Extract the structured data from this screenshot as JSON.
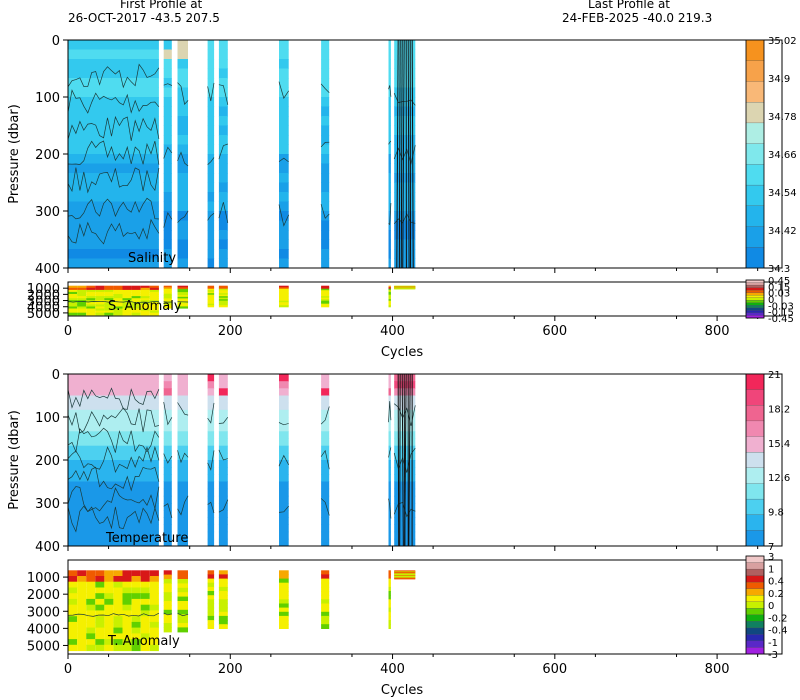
{
  "header": {
    "first_label": "First Profile at",
    "first_value": "26-OCT-2017   -43.5  207.5",
    "last_label": "Last Profile at",
    "last_value": "24-FEB-2025   -40.0  219.3"
  },
  "chart_data": [
    {
      "type": "heatmap",
      "title": "Salinity",
      "xlabel": "",
      "ylabel": "Pressure (dbar)",
      "xlim": [
        0,
        880
      ],
      "ylim": [
        400,
        0
      ],
      "x_ticks": [
        "0",
        "200",
        "400",
        "600",
        "800"
      ],
      "y_ticks": [
        "0",
        "100",
        "200",
        "300",
        "400"
      ],
      "colorbar_ticks": [
        "35.02",
        "34.9",
        "34.78",
        "34.66",
        "34.54",
        "34.42",
        "34.3"
      ],
      "colorbar_colors": [
        "#f6921e",
        "#f7a24a",
        "#f9b877",
        "#dcd5b1",
        "#aeeee4",
        "#7fe8ec",
        "#4fdcf0",
        "#33c9ee",
        "#23b4ec",
        "#1aa0e8",
        "#108ae4"
      ],
      "profile_cycle_ranges": [
        [
          0,
          112
        ],
        [
          118,
          128
        ],
        [
          135,
          148
        ],
        [
          172,
          180
        ],
        [
          186,
          197
        ],
        [
          260,
          272
        ],
        [
          312,
          322
        ],
        [
          395,
          398
        ],
        [
          402,
          428
        ]
      ],
      "gaps": "data only in profile cycle ranges"
    },
    {
      "type": "heatmap",
      "title": "S. Anomaly",
      "xlabel": "Cycles",
      "ylabel": "",
      "xlim": [
        0,
        880
      ],
      "ylim": [
        5500,
        0
      ],
      "x_ticks": [
        "0",
        "200",
        "400",
        "600",
        "800"
      ],
      "y_ticks": [
        "1000",
        "2000",
        "3000",
        "4000",
        "5000"
      ],
      "colorbar_ticks": [
        "0.45",
        "0.15",
        "0.03",
        "0",
        "-0.03",
        "-0.15",
        "-0.45"
      ],
      "colorbar_colors": [
        "#f0c8c8",
        "#d8a0a0",
        "#b06060",
        "#d81818",
        "#f05a00",
        "#f7a800",
        "#f5f000",
        "#c8f000",
        "#60d000",
        "#10b010",
        "#108060",
        "#104880",
        "#2828b0",
        "#5a28c8",
        "#a020e0"
      ]
    },
    {
      "type": "heatmap",
      "title": "Temperature",
      "xlabel": "",
      "ylabel": "Pressure (dbar)",
      "xlim": [
        0,
        880
      ],
      "ylim": [
        400,
        0
      ],
      "x_ticks": [
        "0",
        "200",
        "400",
        "600",
        "800"
      ],
      "y_ticks": [
        "0",
        "100",
        "200",
        "300",
        "400"
      ],
      "colorbar_ticks": [
        "21",
        "18.2",
        "15.4",
        "12.6",
        "9.8",
        "7"
      ],
      "colorbar_colors": [
        "#f2275a",
        "#f0457a",
        "#ef6490",
        "#f088b0",
        "#f0b0d0",
        "#cde0ee",
        "#aeeef0",
        "#7fe6ee",
        "#4cd0f0",
        "#2ab4ee",
        "#1a98e8"
      ]
    },
    {
      "type": "heatmap",
      "title": "T. Anomaly",
      "xlabel": "Cycles",
      "ylabel": "",
      "xlim": [
        0,
        880
      ],
      "ylim": [
        5500,
        0
      ],
      "x_ticks": [
        "0",
        "200",
        "400",
        "600",
        "800"
      ],
      "y_ticks": [
        "1000",
        "2000",
        "3000",
        "4000",
        "5000"
      ],
      "colorbar_ticks": [
        "3",
        "1",
        "0.4",
        "0.2",
        "0",
        "-0.2",
        "-0.4",
        "-1",
        "-3"
      ],
      "colorbar_colors": [
        "#f0c8c8",
        "#d8a0a0",
        "#b06060",
        "#d81818",
        "#f05a00",
        "#f7a800",
        "#f5f000",
        "#c8f000",
        "#60d000",
        "#10b010",
        "#108060",
        "#104880",
        "#2828b0",
        "#5a28c8",
        "#a020e0"
      ]
    }
  ]
}
